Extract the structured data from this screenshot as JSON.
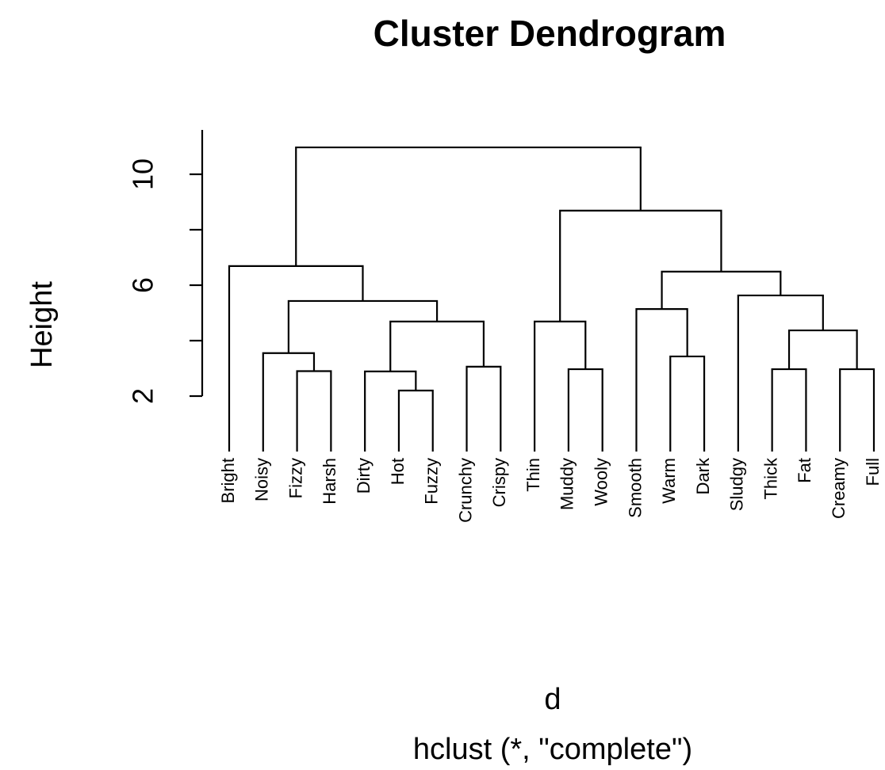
{
  "chart_data": {
    "type": "dendrogram",
    "title": "Cluster Dendrogram",
    "ylabel": "Height",
    "xlabel": "d",
    "subtitle": "hclust (*, \"complete\")",
    "ylim": [
      0,
      11.6
    ],
    "yticks": [
      2,
      6,
      10
    ],
    "yminor_ticks": [
      4,
      8
    ],
    "color": "#000000",
    "tree": {
      "height": 10.97,
      "children": [
        {
          "height": 6.69,
          "children": [
            "Bright",
            {
              "height": 5.43,
              "children": [
                {
                  "height": 3.55,
                  "children": [
                    "Noisy",
                    {
                      "height": 2.9,
                      "children": [
                        "Fizzy",
                        "Harsh"
                      ]
                    }
                  ]
                },
                {
                  "height": 4.69,
                  "children": [
                    {
                      "height": 2.89,
                      "children": [
                        "Dirty",
                        {
                          "height": 2.2,
                          "children": [
                            "Hot",
                            "Fuzzy"
                          ]
                        }
                      ]
                    },
                    {
                      "height": 3.06,
                      "children": [
                        "Crunchy",
                        "Crispy"
                      ]
                    }
                  ]
                }
              ]
            }
          ]
        },
        {
          "height": 8.69,
          "children": [
            {
              "height": 4.69,
              "children": [
                "Thin",
                {
                  "height": 2.97,
                  "children": [
                    "Muddy",
                    "Wooly"
                  ]
                }
              ]
            },
            {
              "height": 6.49,
              "children": [
                {
                  "height": 5.14,
                  "children": [
                    "Smooth",
                    {
                      "height": 3.43,
                      "children": [
                        "Warm",
                        "Dark"
                      ]
                    }
                  ]
                },
                {
                  "height": 5.63,
                  "children": [
                    "Sludgy",
                    {
                      "height": 4.37,
                      "children": [
                        {
                          "height": 2.97,
                          "children": [
                            "Thick",
                            "Fat"
                          ]
                        },
                        {
                          "height": 2.97,
                          "children": [
                            "Creamy",
                            "Full"
                          ]
                        }
                      ]
                    }
                  ]
                }
              ]
            }
          ]
        }
      ]
    }
  }
}
